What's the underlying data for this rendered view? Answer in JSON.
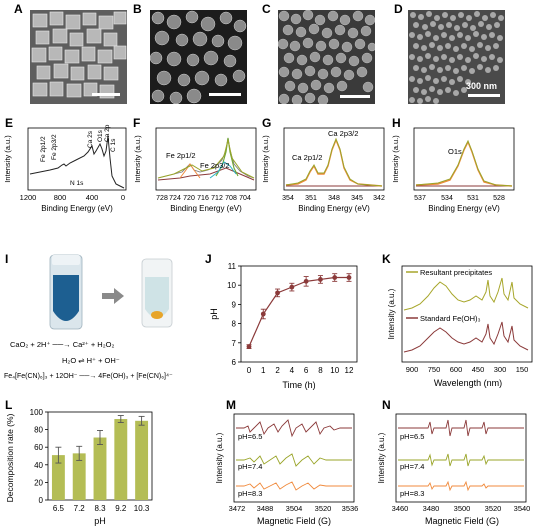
{
  "panel_labels": {
    "A": "A",
    "B": "B",
    "C": "C",
    "D": "D",
    "E": "E",
    "F": "F",
    "G": "G",
    "H": "H",
    "I": "I",
    "J": "J",
    "K": "K",
    "L": "L",
    "M": "M",
    "N": "N"
  },
  "sem": {
    "d_scale_text": "300 nm"
  },
  "xps": {
    "ylabel": "Intensity (a.u.)",
    "xlabel": "Binding Energy (eV)",
    "E": {
      "ticks": [
        "1200",
        "800",
        "400",
        "0"
      ],
      "peaks": [
        "Fe 2p1/2",
        "Fe 2p3/2",
        "Ca 2s",
        "O1s",
        "Ca 2p",
        "C 1s",
        "N 1s"
      ]
    },
    "F": {
      "ticks": [
        "728",
        "720",
        "712",
        "704"
      ],
      "ticks_minor": [
        "724",
        "716",
        "708"
      ],
      "peaks": [
        "Fe 2p1/2",
        "Fe 2p3/2"
      ]
    },
    "G": {
      "ticks": [
        "354",
        "351",
        "348",
        "345",
        "342"
      ],
      "peaks": [
        "Ca 2p1/2",
        "Ca 2p3/2"
      ]
    },
    "H": {
      "ticks": [
        "537",
        "534",
        "531",
        "528"
      ],
      "peaks": [
        "O1s"
      ]
    }
  },
  "panel_i": {
    "eq1": "CaO₂ + 2H⁺ ──→ Ca²⁺ + H₂O₂",
    "eq2": "H₂O ⇌ H⁺ + OH⁻",
    "eq3": "Fe₄[Fe(CN)₆]₃ + 12OH⁻ ──→ 4Fe(OH)₃ + [Fe(CN)₆]⁴⁻"
  },
  "chart_data": [
    {
      "panel": "J",
      "type": "line",
      "x": [
        0,
        1,
        2,
        4,
        6,
        8,
        10,
        12
      ],
      "x_tick_labels": [
        "0",
        "1",
        "2",
        "4",
        "6",
        "8",
        "10",
        "12"
      ],
      "values": [
        6.8,
        8.5,
        9.6,
        9.9,
        10.2,
        10.3,
        10.4,
        10.4
      ],
      "errors": [
        0.1,
        0.25,
        0.2,
        0.2,
        0.25,
        0.2,
        0.2,
        0.2
      ],
      "xlabel": "Time (h)",
      "ylabel": "pH",
      "ylim": [
        6,
        11
      ],
      "y_ticks": [
        "6",
        "7",
        "8",
        "9",
        "10",
        "11"
      ],
      "color": "#8b3a3a"
    },
    {
      "panel": "K",
      "type": "line",
      "xlabel": "Wavelength (nm)",
      "ylabel": "Intensity (a.u.)",
      "x_ticks": [
        "900",
        "750",
        "600",
        "450",
        "300",
        "150"
      ],
      "series": [
        {
          "name": "Resultant precipitates",
          "color": "#a7a62a"
        },
        {
          "name": "Standard Fe(OH)₃",
          "color": "#8b3a3a"
        }
      ]
    },
    {
      "panel": "L",
      "type": "bar",
      "categories": [
        "6.5",
        "7.2",
        "8.3",
        "9.2",
        "10.3"
      ],
      "values": [
        51,
        53,
        71,
        92,
        90
      ],
      "errors": [
        9,
        8,
        8,
        4,
        5
      ],
      "xlabel": "pH",
      "ylabel": "Decomposition rate (%)",
      "ylim": [
        0,
        100
      ],
      "y_ticks": [
        "0",
        "20",
        "40",
        "60",
        "80",
        "100"
      ],
      "color": "#b4bd55"
    },
    {
      "panel": "M",
      "type": "line",
      "xlabel": "Magnetic Field (G)",
      "ylabel": "Intensity (a.u.)",
      "x_ticks": [
        "3472",
        "3488",
        "3504",
        "3520",
        "3536"
      ],
      "series": [
        {
          "name": "pH=6.5",
          "color": "#8b3a3a"
        },
        {
          "name": "pH=7.4",
          "color": "#9aa52a"
        },
        {
          "name": "pH=8.3",
          "color": "#f08a3c"
        }
      ]
    },
    {
      "panel": "N",
      "type": "line",
      "xlabel": "Magnetic Field (G)",
      "ylabel": "Intensity (a.u.)",
      "x_ticks": [
        "3460",
        "3480",
        "3500",
        "3520",
        "3540"
      ],
      "series": [
        {
          "name": "pH=6.5",
          "color": "#8b3a3a"
        },
        {
          "name": "pH=7.4",
          "color": "#9aa52a"
        },
        {
          "name": "pH=8.3",
          "color": "#f08a3c"
        }
      ]
    }
  ]
}
